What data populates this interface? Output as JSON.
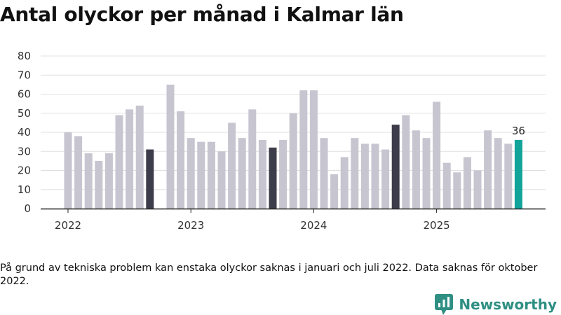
{
  "title": "Antal olyckor per månad i Kalmar län",
  "note": "På grund av tekniska problem kan enstaka olyckor saknas i januari och juli 2022. Data saknas för oktober 2022.",
  "brand": "Newsworthy",
  "colors": {
    "default": "#c7c5d0",
    "september": "#3d3c4a",
    "latest": "#12a39b",
    "gridline": "#e0e0e0",
    "axis": "#222222",
    "brand": "#2f8f83"
  },
  "chart_data": {
    "type": "bar",
    "title": "Antal olyckor per månad i Kalmar län",
    "xlabel": "",
    "ylabel": "",
    "ylim": [
      0,
      80
    ],
    "yticks": [
      "0",
      "10",
      "20",
      "30",
      "40",
      "50",
      "60",
      "70",
      "80"
    ],
    "year_labels": [
      "2022",
      "2023",
      "2024",
      "2025"
    ],
    "categories": [
      "2022-01",
      "2022-02",
      "2022-03",
      "2022-04",
      "2022-05",
      "2022-06",
      "2022-07",
      "2022-08",
      "2022-09",
      "2022-10",
      "2022-11",
      "2022-12",
      "2023-01",
      "2023-02",
      "2023-03",
      "2023-04",
      "2023-05",
      "2023-06",
      "2023-07",
      "2023-08",
      "2023-09",
      "2023-10",
      "2023-11",
      "2023-12",
      "2024-01",
      "2024-02",
      "2024-03",
      "2024-04",
      "2024-05",
      "2024-06",
      "2024-07",
      "2024-08",
      "2024-09",
      "2024-10",
      "2024-11",
      "2024-12",
      "2025-01",
      "2025-02",
      "2025-03",
      "2025-04",
      "2025-05",
      "2025-06",
      "2025-07",
      "2025-08",
      "2025-09"
    ],
    "values": [
      40,
      38,
      29,
      25,
      29,
      49,
      52,
      54,
      31,
      null,
      65,
      51,
      37,
      35,
      35,
      30,
      45,
      37,
      52,
      36,
      32,
      36,
      50,
      62,
      62,
      37,
      18,
      27,
      37,
      34,
      34,
      31,
      44,
      49,
      41,
      37,
      56,
      24,
      19,
      27,
      20,
      41,
      37,
      34,
      36
    ],
    "highlight_months": [
      "2022-09",
      "2023-09",
      "2024-09"
    ],
    "latest_month": "2025-09",
    "data_labels": [
      {
        "category": "2025-09",
        "text": "36"
      }
    ]
  }
}
